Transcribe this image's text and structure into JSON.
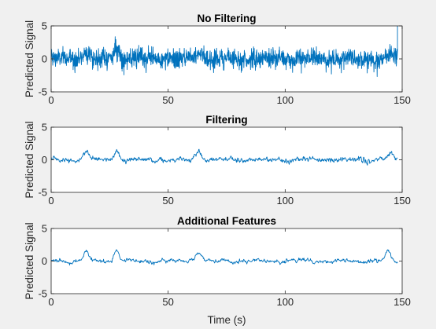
{
  "chart_data": [
    {
      "type": "line",
      "title": "No Filtering",
      "xlabel": "",
      "ylabel": "Predicted Signal",
      "xlim": [
        0,
        150
      ],
      "ylim": [
        -5,
        5
      ],
      "xticks": [
        0,
        50,
        100,
        150
      ],
      "yticks": [
        -5,
        0,
        5
      ],
      "grid": false,
      "color": "#0072bd",
      "noise": 0.75,
      "events": [
        {
          "t": 15,
          "a": 1.2,
          "w": 1.5
        },
        {
          "t": 28,
          "a": 1.6,
          "w": 1.2
        },
        {
          "t": 63,
          "a": 1.0,
          "w": 2.0
        },
        {
          "t": 145,
          "a": 0.8,
          "w": 2.0
        }
      ],
      "end_spike": {
        "t": 148,
        "y": 5.0
      }
    },
    {
      "type": "line",
      "title": "Filtering",
      "xlabel": "",
      "ylabel": "Predicted Signal",
      "xlim": [
        0,
        150
      ],
      "ylim": [
        -5,
        5
      ],
      "xticks": [
        0,
        50,
        100,
        150
      ],
      "yticks": [
        -5,
        0,
        5
      ],
      "grid": false,
      "color": "#0072bd",
      "noise": 0.22,
      "events": [
        {
          "t": 15,
          "a": 1.3,
          "w": 1.2
        },
        {
          "t": 28,
          "a": 1.5,
          "w": 1.0
        },
        {
          "t": 63,
          "a": 1.1,
          "w": 1.5
        },
        {
          "t": 145,
          "a": 0.8,
          "w": 1.5
        }
      ]
    },
    {
      "type": "line",
      "title": "Additional Features",
      "xlabel": "Time (s)",
      "ylabel": "Predicted Signal",
      "xlim": [
        0,
        150
      ],
      "ylim": [
        -5,
        5
      ],
      "xticks": [
        0,
        50,
        100,
        150
      ],
      "yticks": [
        -5,
        0,
        5
      ],
      "grid": false,
      "color": "#0072bd",
      "noise": 0.18,
      "events": [
        {
          "t": 15,
          "a": 1.5,
          "w": 1.0
        },
        {
          "t": 28,
          "a": 1.8,
          "w": 1.0
        },
        {
          "t": 63,
          "a": 1.5,
          "w": 1.2
        },
        {
          "t": 144,
          "a": 1.4,
          "w": 1.2
        }
      ]
    }
  ]
}
